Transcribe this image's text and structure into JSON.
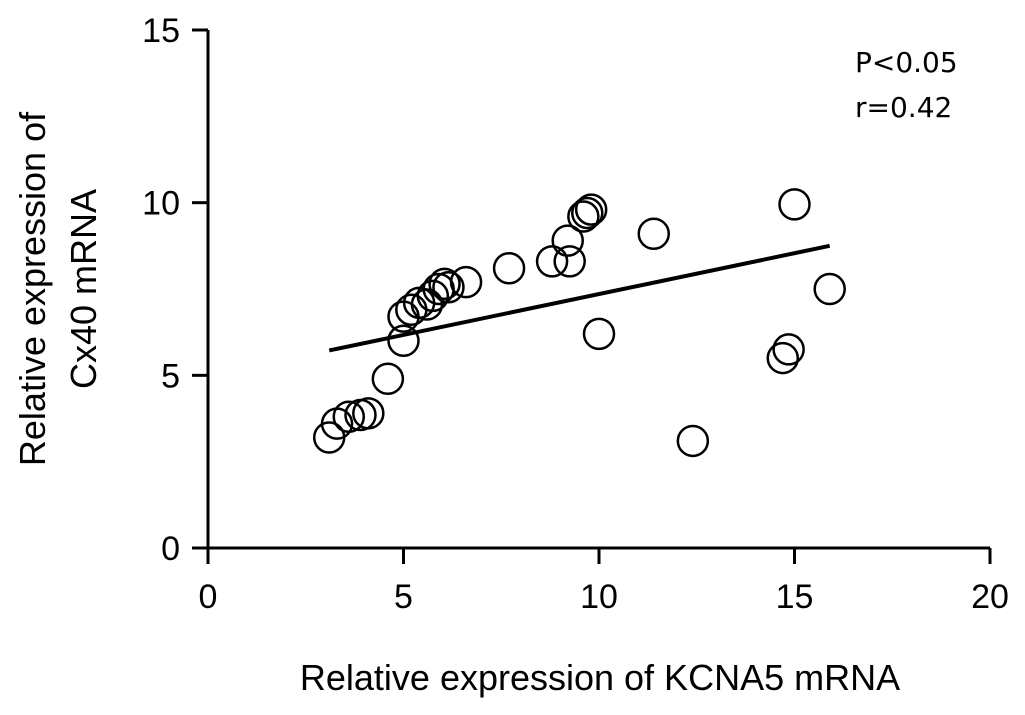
{
  "chart_data": {
    "type": "scatter",
    "title": "",
    "xlabel": "Relative expression of KCNA5 mRNA",
    "ylabel_lines": [
      "Relative expression of",
      "Cx40 mRNA"
    ],
    "xlim": [
      0,
      20
    ],
    "ylim": [
      0,
      15
    ],
    "xticks": [
      0,
      5,
      10,
      15,
      20
    ],
    "yticks": [
      0,
      5,
      10,
      15
    ],
    "grid": false,
    "marker": "open-circle",
    "annotations": [
      "P<0.05",
      "r=0.42"
    ],
    "points": [
      {
        "x": 3.1,
        "y": 3.2
      },
      {
        "x": 3.3,
        "y": 3.6
      },
      {
        "x": 3.6,
        "y": 3.8
      },
      {
        "x": 3.9,
        "y": 3.85
      },
      {
        "x": 4.1,
        "y": 3.9
      },
      {
        "x": 4.6,
        "y": 4.9
      },
      {
        "x": 5.0,
        "y": 6.0
      },
      {
        "x": 5.0,
        "y": 6.7
      },
      {
        "x": 5.2,
        "y": 6.9
      },
      {
        "x": 5.4,
        "y": 7.1
      },
      {
        "x": 5.6,
        "y": 7.05
      },
      {
        "x": 5.75,
        "y": 7.3
      },
      {
        "x": 5.9,
        "y": 7.5
      },
      {
        "x": 6.05,
        "y": 7.65
      },
      {
        "x": 6.15,
        "y": 7.55
      },
      {
        "x": 6.6,
        "y": 7.7
      },
      {
        "x": 7.7,
        "y": 8.1
      },
      {
        "x": 8.8,
        "y": 8.3
      },
      {
        "x": 9.2,
        "y": 8.9
      },
      {
        "x": 9.25,
        "y": 8.3
      },
      {
        "x": 9.6,
        "y": 9.6
      },
      {
        "x": 9.7,
        "y": 9.7
      },
      {
        "x": 9.8,
        "y": 9.8
      },
      {
        "x": 10.0,
        "y": 6.2
      },
      {
        "x": 11.4,
        "y": 9.1
      },
      {
        "x": 12.4,
        "y": 3.1
      },
      {
        "x": 14.7,
        "y": 5.5
      },
      {
        "x": 14.85,
        "y": 5.75
      },
      {
        "x": 15.0,
        "y": 9.95
      },
      {
        "x": 15.9,
        "y": 7.5
      }
    ],
    "fit_line": {
      "x": [
        3.1,
        15.9
      ],
      "y": [
        5.72,
        8.75
      ]
    }
  }
}
